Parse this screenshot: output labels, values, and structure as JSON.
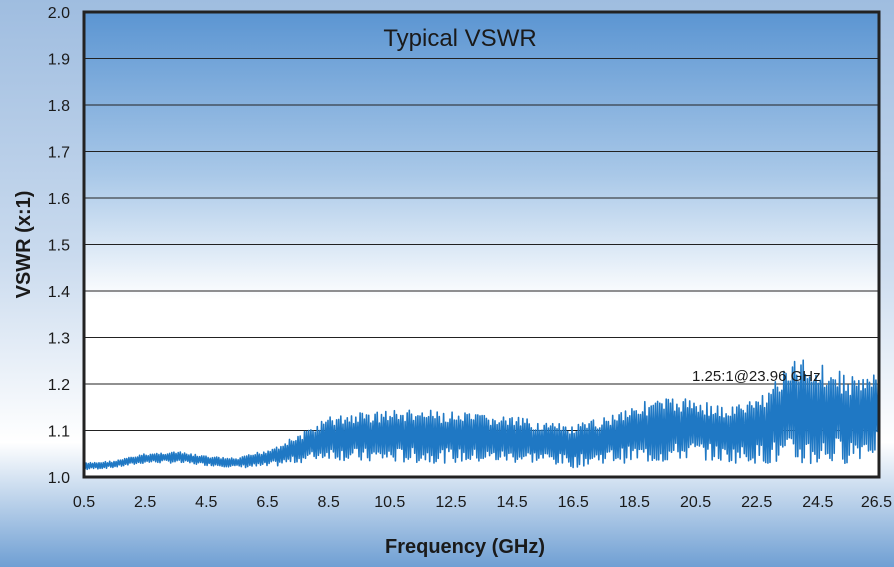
{
  "chart_data": {
    "type": "line",
    "title": "Typical VSWR",
    "xlabel": "Frequency (GHz)",
    "ylabel": "VSWR (x:1)",
    "xlim": [
      0.5,
      26.5
    ],
    "ylim": [
      1.0,
      2.0
    ],
    "x_ticks": [
      "0.5",
      "2.5",
      "4.5",
      "6.5",
      "8.5",
      "10.5",
      "12.5",
      "14.5",
      "16.5",
      "18.5",
      "20.5",
      "22.5",
      "24.5",
      "26.5"
    ],
    "y_ticks": [
      "1.0",
      "1.1",
      "1.2",
      "1.3",
      "1.4",
      "1.5",
      "1.6",
      "1.7",
      "1.8",
      "1.9",
      "2.0"
    ],
    "grid": true,
    "annotation": {
      "text": "1.25:1@23.96 GHz",
      "x": 23.96,
      "y": 1.25
    },
    "series": [
      {
        "color": "#1f78c4",
        "envelope_x": [
          0.5,
          1.5,
          2.5,
          3.5,
          4.5,
          5.5,
          6.5,
          7.5,
          8.5,
          9.5,
          10.5,
          11.5,
          12.5,
          13.5,
          14.5,
          15.5,
          16.5,
          17.5,
          18.5,
          19.5,
          20.5,
          21.5,
          22.5,
          23.5,
          24.0,
          24.5,
          25.5,
          26.5
        ],
        "envelope_max": [
          1.03,
          1.035,
          1.05,
          1.055,
          1.045,
          1.04,
          1.06,
          1.09,
          1.13,
          1.14,
          1.145,
          1.145,
          1.14,
          1.135,
          1.13,
          1.12,
          1.11,
          1.13,
          1.16,
          1.17,
          1.17,
          1.15,
          1.17,
          1.24,
          1.26,
          1.25,
          1.22,
          1.22
        ],
        "envelope_min": [
          1.015,
          1.02,
          1.03,
          1.03,
          1.025,
          1.02,
          1.02,
          1.03,
          1.04,
          1.03,
          1.03,
          1.03,
          1.03,
          1.03,
          1.03,
          1.03,
          1.02,
          1.03,
          1.03,
          1.03,
          1.04,
          1.03,
          1.03,
          1.02,
          1.02,
          1.02,
          1.03,
          1.05
        ]
      }
    ]
  }
}
